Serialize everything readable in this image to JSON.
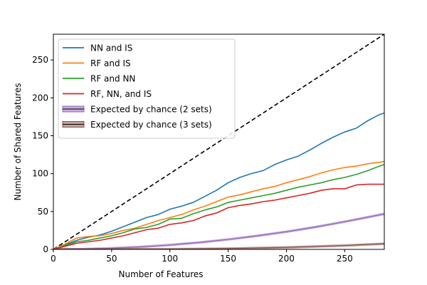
{
  "chart_data": {
    "type": "line",
    "xlabel": "Number of Features",
    "ylabel": "Number of Shared Features",
    "xlim": [
      0,
      284
    ],
    "ylim": [
      0,
      284
    ],
    "xticks": [
      0,
      50,
      100,
      150,
      200,
      250
    ],
    "yticks": [
      0,
      50,
      100,
      150,
      200,
      250
    ],
    "grid": false,
    "legend_position": "upper-left",
    "reference_line": {
      "style": "dashed",
      "color": "#000000",
      "x": [
        0,
        284
      ],
      "y": [
        0,
        284
      ]
    },
    "series": [
      {
        "name": "NN and IS",
        "color": "#1f77b4",
        "x": [
          0,
          10,
          20,
          30,
          40,
          50,
          60,
          70,
          80,
          90,
          100,
          110,
          120,
          130,
          140,
          150,
          160,
          170,
          180,
          190,
          200,
          210,
          220,
          230,
          240,
          250,
          260,
          270,
          280,
          284
        ],
        "y": [
          0,
          6,
          12,
          16,
          19,
          24,
          30,
          36,
          42,
          46,
          53,
          57,
          62,
          70,
          78,
          88,
          95,
          100,
          104,
          112,
          118,
          123,
          131,
          140,
          148,
          155,
          160,
          170,
          178,
          180
        ]
      },
      {
        "name": "RF and IS",
        "color": "#ff7f0e",
        "x": [
          0,
          10,
          20,
          30,
          40,
          50,
          60,
          70,
          80,
          90,
          100,
          110,
          120,
          130,
          140,
          150,
          160,
          170,
          180,
          190,
          200,
          210,
          220,
          230,
          240,
          250,
          260,
          270,
          280,
          284
        ],
        "y": [
          0,
          7,
          15,
          17,
          18,
          21,
          25,
          28,
          33,
          38,
          42,
          46,
          52,
          57,
          63,
          69,
          72,
          76,
          80,
          83,
          88,
          92,
          96,
          101,
          105,
          108,
          110,
          113,
          115,
          116
        ]
      },
      {
        "name": "RF and NN",
        "color": "#2ca02c",
        "x": [
          0,
          10,
          20,
          30,
          40,
          50,
          60,
          70,
          80,
          90,
          100,
          110,
          120,
          130,
          140,
          150,
          160,
          170,
          180,
          190,
          200,
          210,
          220,
          230,
          240,
          250,
          260,
          270,
          280,
          284
        ],
        "y": [
          0,
          5,
          10,
          12,
          15,
          18,
          22,
          27,
          29,
          33,
          40,
          41,
          47,
          52,
          56,
          62,
          65,
          68,
          71,
          74,
          78,
          82,
          85,
          88,
          92,
          95,
          99,
          104,
          110,
          112
        ]
      },
      {
        "name": "RF, NN, and IS",
        "color": "#d62728",
        "x": [
          0,
          10,
          20,
          30,
          40,
          50,
          60,
          70,
          80,
          90,
          100,
          110,
          120,
          130,
          140,
          150,
          160,
          170,
          180,
          190,
          200,
          210,
          220,
          230,
          240,
          250,
          260,
          270,
          280,
          284
        ],
        "y": [
          0,
          4,
          8,
          10,
          12,
          15,
          18,
          22,
          26,
          28,
          33,
          35,
          38,
          44,
          48,
          55,
          58,
          60,
          63,
          65,
          68,
          71,
          74,
          78,
          80,
          80,
          85,
          86,
          86,
          86
        ]
      },
      {
        "name": "Expected by chance (2 sets)",
        "color": "#9467bd",
        "band": true,
        "x": [
          0,
          25,
          50,
          75,
          100,
          125,
          150,
          175,
          200,
          225,
          250,
          284
        ],
        "y": [
          0,
          0.4,
          1.5,
          3.3,
          5.8,
          9.1,
          13.1,
          17.9,
          23.3,
          29.5,
          36.5,
          46.8
        ]
      },
      {
        "name": "Expected by chance (3 sets)",
        "color": "#8c564b",
        "band": true,
        "x": [
          0,
          50,
          100,
          150,
          200,
          250,
          284
        ],
        "y": [
          0,
          0.1,
          0.3,
          1.1,
          2.6,
          5.1,
          7.4
        ]
      }
    ]
  }
}
